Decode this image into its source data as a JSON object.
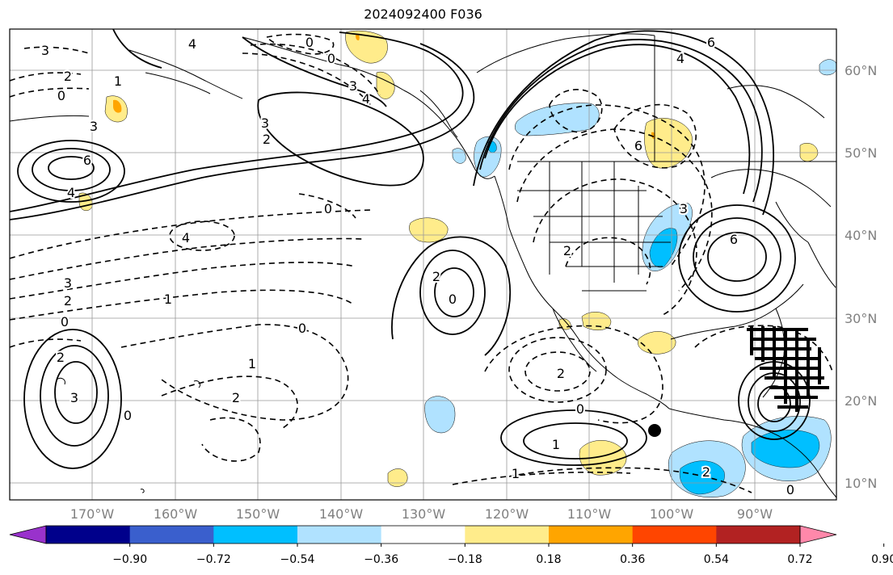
{
  "title": "2024092400 F036",
  "map": {
    "lon_labels": [
      "170°W",
      "160°W",
      "150°W",
      "140°W",
      "130°W",
      "120°W",
      "110°W",
      "100°W",
      "90°W"
    ],
    "lat_labels": [
      "60°N",
      "50°N",
      "40°N",
      "30°N",
      "20°N",
      "10°N"
    ],
    "contour_labels": [
      {
        "text": "0",
        "style": "dashed"
      },
      {
        "text": "0",
        "style": "solid"
      },
      {
        "text": "3",
        "style": "solid"
      },
      {
        "text": "4",
        "style": "solid"
      },
      {
        "text": "4",
        "style": "solid"
      },
      {
        "text": "3",
        "style": "dashed"
      },
      {
        "text": "2",
        "style": "dashed"
      },
      {
        "text": "0",
        "style": "dashed"
      },
      {
        "text": "3",
        "style": "solid"
      },
      {
        "text": "6",
        "style": "solid"
      },
      {
        "text": "4",
        "style": "solid"
      },
      {
        "text": "3",
        "style": "solid"
      },
      {
        "text": "2",
        "style": "solid"
      },
      {
        "text": "0",
        "style": "dashed"
      },
      {
        "text": "4",
        "style": "dashed"
      },
      {
        "text": "3",
        "style": "dashed"
      },
      {
        "text": "2",
        "style": "dashed"
      },
      {
        "text": "1",
        "style": "dashed"
      },
      {
        "text": "0",
        "style": "dashed"
      },
      {
        "text": "0",
        "style": "dashed"
      },
      {
        "text": "2",
        "style": "solid"
      },
      {
        "text": "3",
        "style": "solid"
      },
      {
        "text": "1",
        "style": "dashed"
      },
      {
        "text": "2",
        "style": "dashed"
      },
      {
        "text": "0",
        "style": "solid"
      },
      {
        "text": "1",
        "style": "solid"
      },
      {
        "text": "2",
        "style": "dashed"
      },
      {
        "text": "0",
        "style": "solid"
      },
      {
        "text": "1",
        "style": "solid"
      },
      {
        "text": "1",
        "style": "dashed"
      },
      {
        "text": "2",
        "style": "dashed"
      },
      {
        "text": "6",
        "style": "solid"
      },
      {
        "text": "4",
        "style": "solid"
      },
      {
        "text": "6",
        "style": "dashed"
      },
      {
        "text": "6",
        "style": "solid"
      },
      {
        "text": "2",
        "style": "dashed"
      },
      {
        "text": "3",
        "style": "dashed"
      },
      {
        "text": "2",
        "style": "dashed"
      },
      {
        "text": "0",
        "style": "solid"
      },
      {
        "text": "0",
        "style": "solid"
      }
    ],
    "marker": "storm-center-dot"
  },
  "colorbar": {
    "ticks": [
      "−0.90",
      "−0.72",
      "−0.54",
      "−0.36",
      "−0.18",
      "0.18",
      "0.36",
      "0.54",
      "0.72",
      "0.90"
    ],
    "colors": [
      "#9932cc",
      "#00008b",
      "#3a5fcd",
      "#00bfff",
      "#b0e2ff",
      "#ffffff",
      "#ffec8b",
      "#ffa500",
      "#ff4500",
      "#b22222",
      "#ff88aa"
    ]
  },
  "colors": {
    "land_outline": "#000000",
    "grid": "#888888",
    "axis_label": "#808080"
  }
}
